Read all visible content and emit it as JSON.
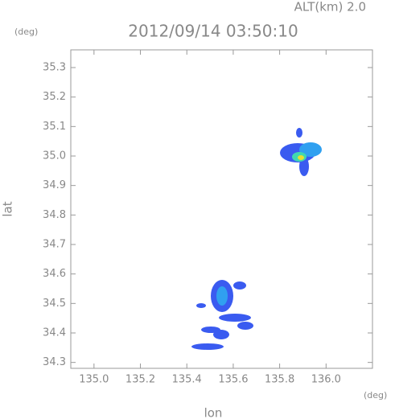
{
  "chart_data": {
    "type": "map",
    "title": "2012/09/14 03:50:10",
    "subtitle": "ALT(km) 2.0",
    "xlabel": "lon",
    "ylabel": "lat",
    "xunit": "(deg)",
    "yunit": "(deg)",
    "xlim": [
      134.9,
      136.2
    ],
    "ylim": [
      34.28,
      35.36
    ],
    "xticks": [
      {
        "value": 135.0,
        "label": "135.0"
      },
      135.2,
      135.4,
      135.6,
      135.8,
      {
        "value": 136.0,
        "label": "136.0"
      }
    ],
    "yticks": [
      34.3,
      34.4,
      34.5,
      34.6,
      34.7,
      34.8,
      34.9,
      {
        "value": 35.0,
        "label": "35.0"
      },
      35.1,
      35.2,
      35.3
    ]
  }
}
